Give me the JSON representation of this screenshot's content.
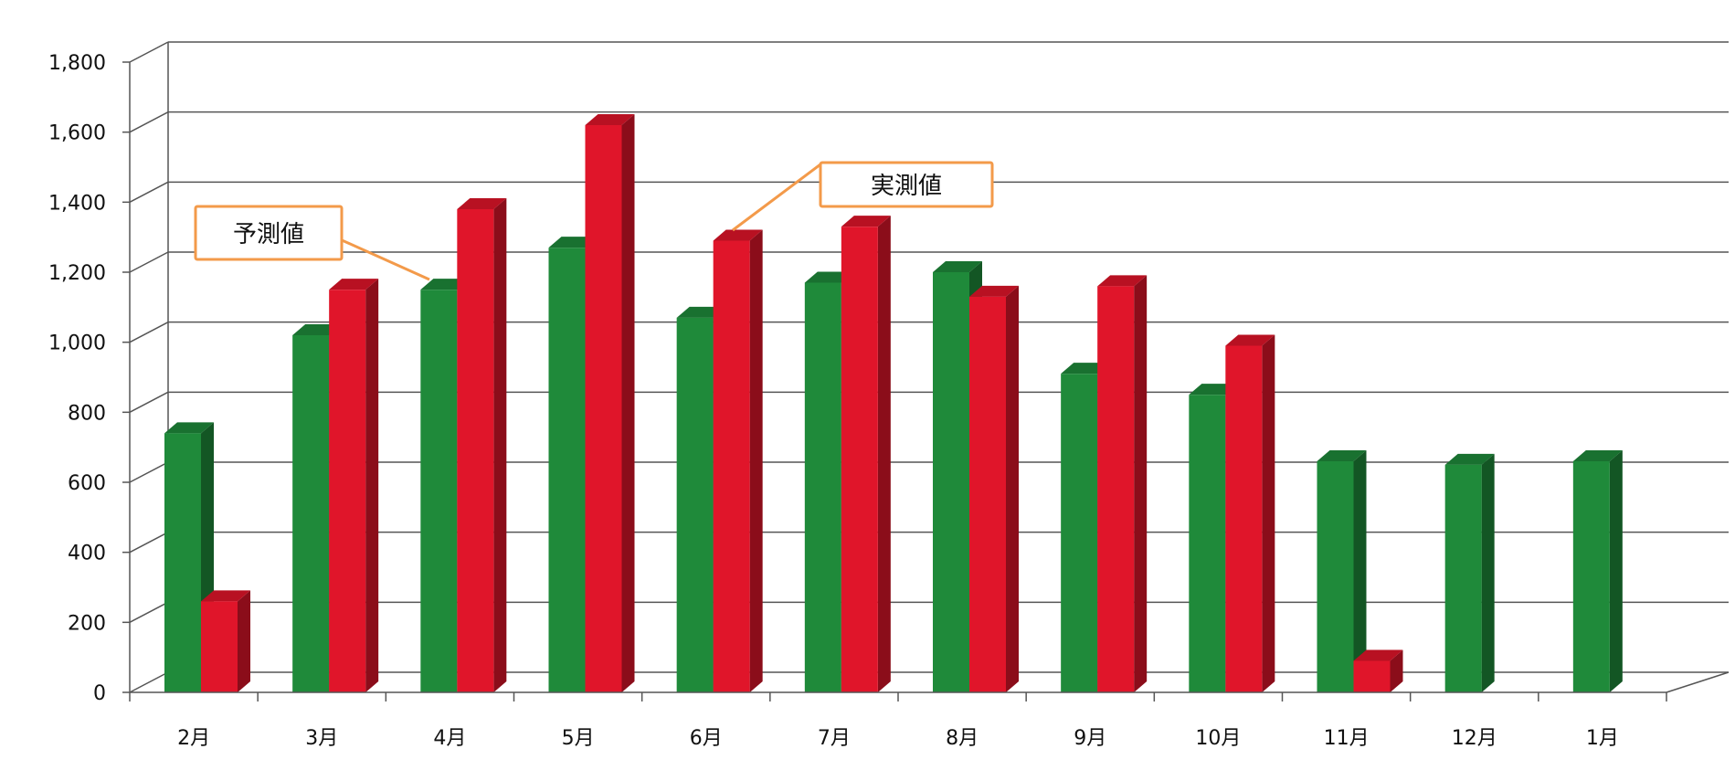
{
  "chart_data": {
    "type": "bar",
    "title": "",
    "xlabel": "",
    "ylabel": "",
    "ylim": [
      0,
      1800
    ],
    "yticks": [
      "0",
      "200",
      "400",
      "600",
      "800",
      "1,000",
      "1,200",
      "1,400",
      "1,600",
      "1,800"
    ],
    "categories": [
      "2月",
      "3月",
      "4月",
      "5月",
      "6月",
      "7月",
      "8月",
      "9月",
      "10月",
      "11月",
      "12月",
      "1月"
    ],
    "series": [
      {
        "name": "予測値",
        "values": [
          740,
          1020,
          1150,
          1270,
          1070,
          1170,
          1200,
          910,
          850,
          660,
          650,
          660
        ],
        "color": "#1f8a3a"
      },
      {
        "name": "実測値",
        "values": [
          260,
          1150,
          1380,
          1620,
          1290,
          1330,
          1130,
          1160,
          990,
          90,
          null,
          null
        ],
        "color": "#e0152a"
      }
    ],
    "grid": true,
    "legend": "callouts"
  },
  "annotations": {
    "forecast_label": "予測値",
    "actual_label": "実測値"
  },
  "colors": {
    "callout_border": "#f39a4a",
    "gridline": "#555555"
  }
}
